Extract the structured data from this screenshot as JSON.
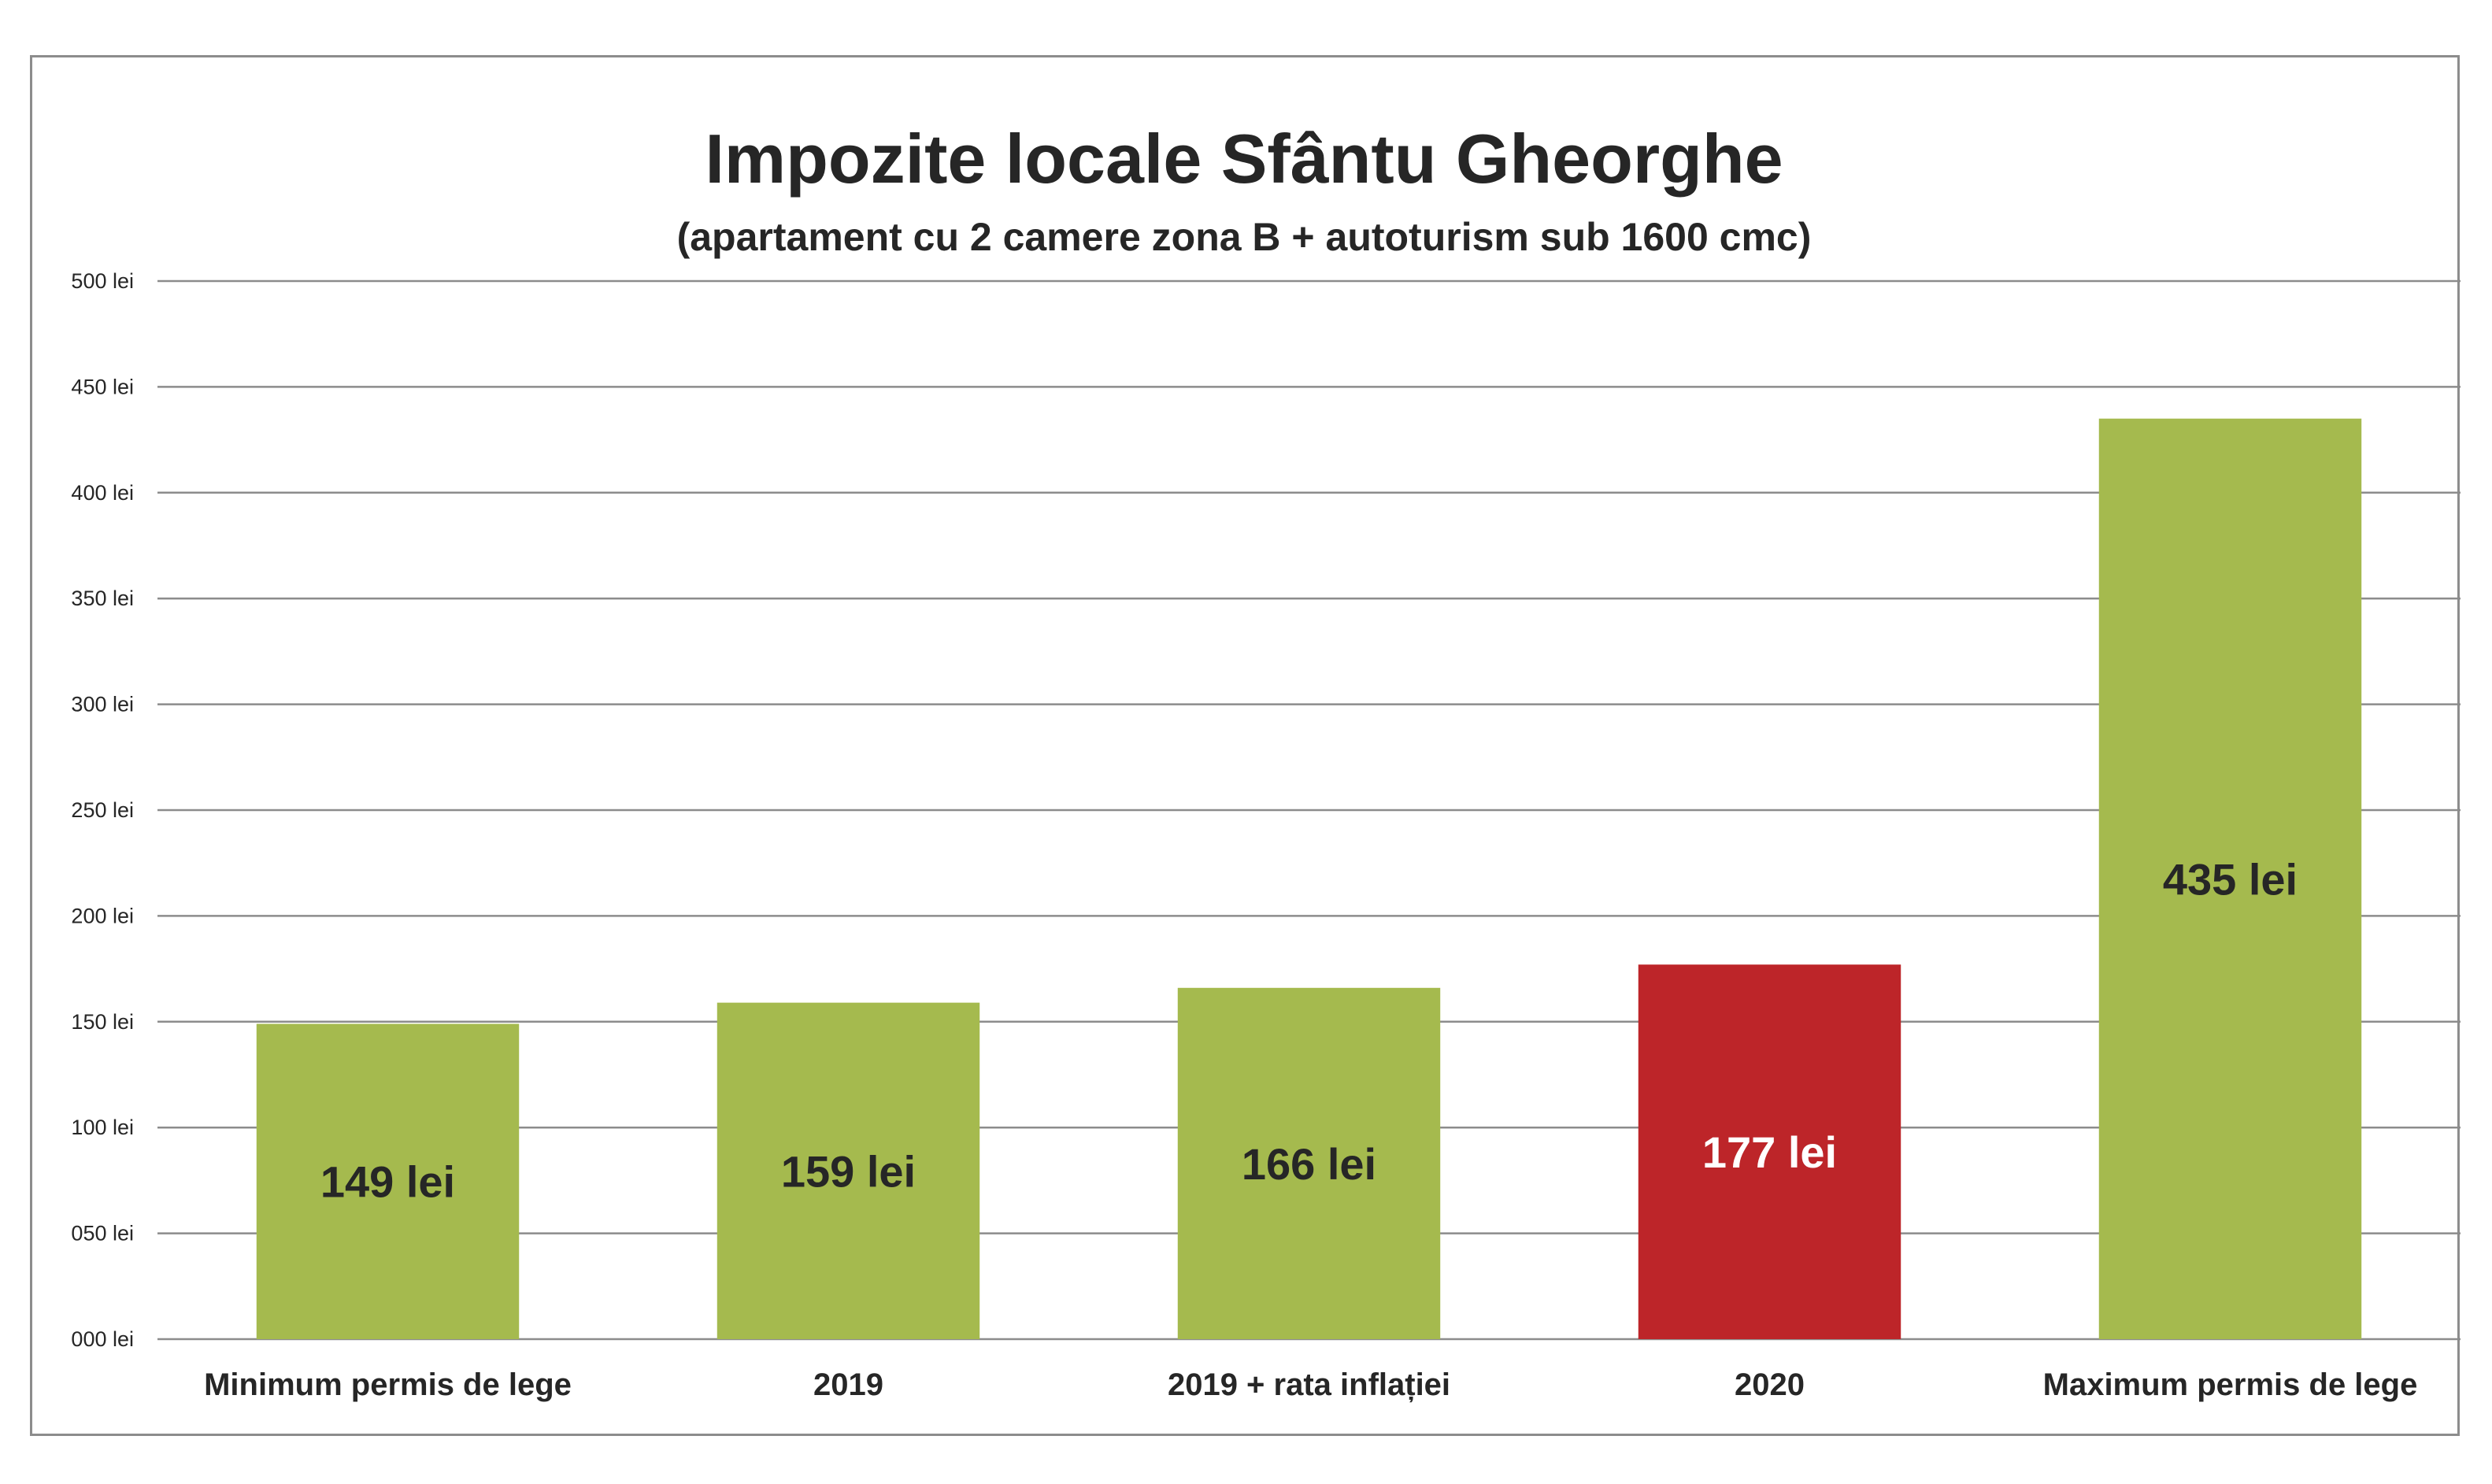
{
  "chart_data": {
    "type": "bar",
    "title": "Impozite locale Sfântu Gheorghe",
    "subtitle": "(apartament cu 2 camere zona B + autoturism sub 1600 cmc)",
    "xlabel": "",
    "ylabel": "",
    "categories": [
      "Minimum permis de lege",
      "2019",
      "2019 + rata inflației",
      "2020",
      "Maximum permis de lege"
    ],
    "values": [
      149,
      159,
      166,
      177,
      435
    ],
    "data_labels": [
      "149 lei",
      "159 lei",
      "166 lei",
      "177 lei",
      "435 lei"
    ],
    "bar_colors": [
      "#a5ba4e",
      "#a5ba4e",
      "#a5ba4e",
      "#bd2529",
      "#a5ba4e"
    ],
    "label_colors": [
      "#262626",
      "#262626",
      "#262626",
      "#ffffff",
      "#262626"
    ],
    "ylim": [
      0,
      500
    ],
    "yticks": [
      0,
      50,
      100,
      150,
      200,
      250,
      300,
      350,
      400,
      450,
      500
    ],
    "ytick_labels": [
      "000 lei",
      "050 lei",
      "100 lei",
      "150 lei",
      "200 lei",
      "250 lei",
      "300 lei",
      "350 lei",
      "400 lei",
      "450 lei",
      "500 lei"
    ],
    "grid": true,
    "legend": "none"
  }
}
